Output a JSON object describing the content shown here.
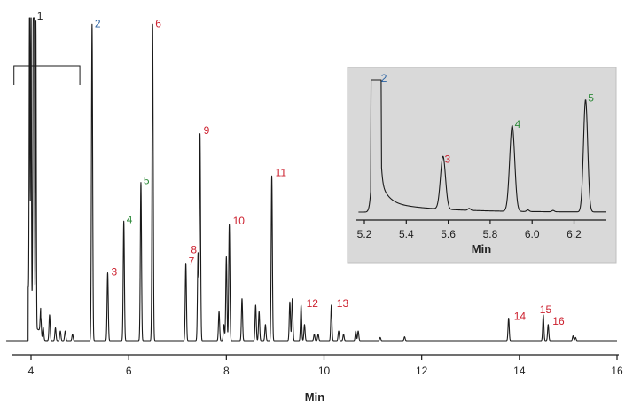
{
  "colors": {
    "red": "#cc1f2d",
    "green": "#2e8a3a",
    "blue": "#2a62a3",
    "trace": "#1a1a1a",
    "inset_bg": "#d9d9d9"
  },
  "chart_data": [
    {
      "type": "line",
      "xlabel": "Min",
      "ylabel": "",
      "xlim": [
        3.5,
        16
      ],
      "ylim": [
        0,
        100
      ],
      "xticks": [
        4,
        6,
        8,
        10,
        12,
        14,
        16
      ],
      "bracket_range": [
        3.65,
        5.0
      ],
      "peaks": [
        {
          "label": "1",
          "rt": 4.05,
          "height": 100,
          "color": "black"
        },
        {
          "label": "2",
          "rt": 5.25,
          "height": 98,
          "color": "blue"
        },
        {
          "label": "3",
          "rt": 5.57,
          "height": 21,
          "color": "red"
        },
        {
          "label": "4",
          "rt": 5.9,
          "height": 37,
          "color": "green"
        },
        {
          "label": "5",
          "rt": 6.25,
          "height": 49,
          "color": "green"
        },
        {
          "label": "6",
          "rt": 6.49,
          "height": 98,
          "color": "red"
        },
        {
          "label": "7",
          "rt": 7.17,
          "height": 24,
          "color": "red"
        },
        {
          "label": "8",
          "rt": 7.42,
          "height": 27,
          "color": "red"
        },
        {
          "label": "9",
          "rt": 7.46,
          "height": 64,
          "color": "red"
        },
        {
          "label": "10",
          "rt": 8.06,
          "height": 36,
          "color": "red"
        },
        {
          "label": "11",
          "rt": 8.93,
          "height": 51,
          "color": "red"
        },
        {
          "label": "12",
          "rt": 9.53,
          "height": 11,
          "color": "red"
        },
        {
          "label": "13",
          "rt": 10.15,
          "height": 11,
          "color": "red"
        },
        {
          "label": "14",
          "rt": 13.78,
          "height": 7,
          "color": "red"
        },
        {
          "label": "15",
          "rt": 14.49,
          "height": 8,
          "color": "red"
        },
        {
          "label": "16",
          "rt": 14.59,
          "height": 5,
          "color": "red"
        }
      ]
    },
    {
      "type": "line",
      "xlabel": "Min",
      "ylabel": "",
      "xlim": [
        5.15,
        6.35
      ],
      "ylim": [
        0,
        100
      ],
      "xticks": [
        "5.2",
        "5.4",
        "5.6",
        "5.8",
        "6.0",
        "6.2"
      ],
      "peaks": [
        {
          "label": "2",
          "rt": 5.25,
          "height": 100,
          "color": "blue"
        },
        {
          "label": "3",
          "rt": 5.57,
          "height": 40,
          "color": "red"
        },
        {
          "label": "4",
          "rt": 5.9,
          "height": 65,
          "color": "green"
        },
        {
          "label": "5",
          "rt": 6.25,
          "height": 85,
          "color": "green"
        }
      ]
    }
  ]
}
